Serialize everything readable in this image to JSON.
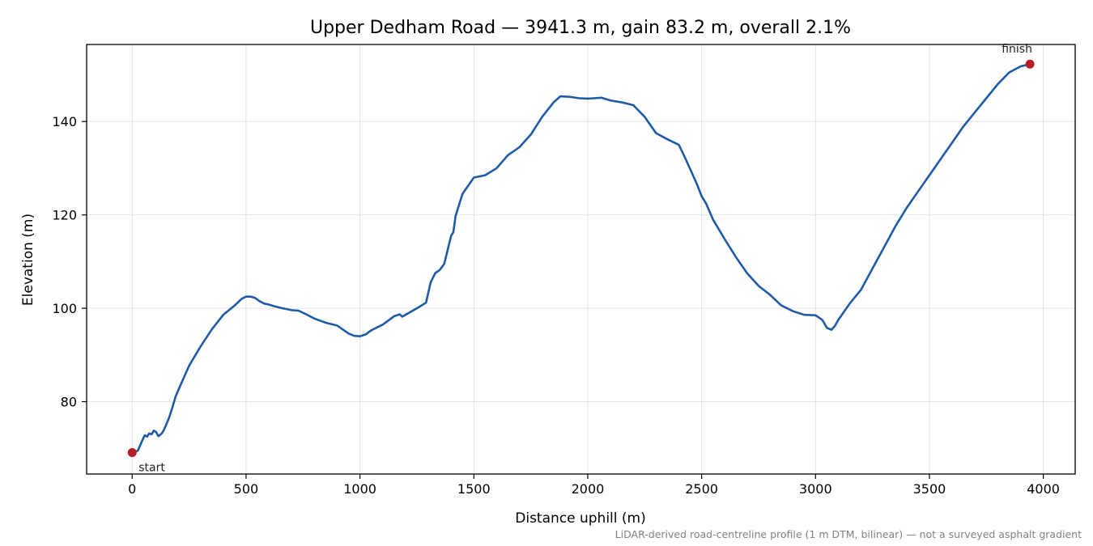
{
  "chart_data": {
    "type": "line",
    "title": "Upper Dedham Road — 3941.3 m, gain 83.2 m, overall 2.1%",
    "xlabel": "Distance uphill (m)",
    "ylabel": "Elevation (m)",
    "xlim": [
      -200,
      4140
    ],
    "ylim": [
      64.5,
      156.5
    ],
    "xticks": [
      0,
      500,
      1000,
      1500,
      2000,
      2500,
      3000,
      3500,
      4000
    ],
    "yticks": [
      80,
      100,
      120,
      140
    ],
    "grid": true,
    "footnote": "LiDAR-derived road-centreline profile (1 m DTM, bilinear) — not a surveyed asphalt gradient",
    "line_color": "#1f5aa6",
    "marker_color": "#b81c23",
    "series": [
      {
        "x": [
          0,
          25,
          40,
          55,
          65,
          75,
          85,
          95,
          105,
          115,
          120,
          130,
          140,
          160,
          175,
          190,
          210,
          250,
          300,
          350,
          400,
          450,
          480,
          500,
          520,
          540,
          560,
          580,
          600,
          620,
          650,
          700,
          730,
          760,
          800,
          850,
          900,
          950,
          975,
          1000,
          1025,
          1050,
          1100,
          1150,
          1175,
          1185,
          1200,
          1250,
          1290,
          1310,
          1330,
          1350,
          1370,
          1400,
          1410,
          1420,
          1450,
          1500,
          1550,
          1600,
          1650,
          1700,
          1750,
          1800,
          1850,
          1880,
          1920,
          1960,
          2000,
          2030,
          2060,
          2100,
          2150,
          2200,
          2250,
          2300,
          2350,
          2400,
          2420,
          2450,
          2480,
          2500,
          2520,
          2550,
          2600,
          2650,
          2700,
          2750,
          2800,
          2850,
          2900,
          2950,
          3000,
          3030,
          3050,
          3070,
          3085,
          3100,
          3150,
          3200,
          3250,
          3300,
          3350,
          3400,
          3450,
          3500,
          3550,
          3600,
          3650,
          3700,
          3750,
          3800,
          3850,
          3900,
          3941.3
        ],
        "y": [
          69.1,
          69.5,
          71.2,
          72.8,
          72.5,
          73.2,
          73.0,
          73.8,
          73.5,
          72.6,
          72.8,
          73.2,
          74.0,
          76.3,
          78.5,
          81.0,
          83.3,
          87.7,
          91.8,
          95.5,
          98.6,
          100.6,
          102.0,
          102.5,
          102.5,
          102.2,
          101.5,
          101.0,
          100.8,
          100.5,
          100.1,
          99.6,
          99.5,
          98.8,
          97.8,
          96.9,
          96.3,
          94.6,
          94.1,
          94.0,
          94.4,
          95.3,
          96.5,
          98.3,
          98.7,
          98.2,
          98.6,
          100.0,
          101.2,
          105.5,
          107.5,
          108.2,
          109.5,
          115.5,
          116.3,
          119.8,
          124.5,
          128.0,
          128.5,
          130.0,
          132.8,
          134.5,
          137.2,
          141.0,
          144.1,
          145.4,
          145.3,
          145.0,
          144.9,
          145.0,
          145.1,
          144.5,
          144.1,
          143.5,
          141.0,
          137.5,
          136.2,
          135.0,
          133.0,
          129.8,
          126.5,
          124.0,
          122.4,
          119.0,
          114.9,
          111.0,
          107.5,
          104.8,
          102.9,
          100.6,
          99.4,
          98.6,
          98.5,
          97.5,
          95.8,
          95.4,
          96.2,
          97.5,
          101.0,
          104.0,
          108.5,
          113.0,
          117.5,
          121.5,
          125.0,
          128.5,
          132.0,
          135.5,
          139.0,
          142.0,
          145.0,
          148.0,
          150.5,
          151.8,
          152.3
        ]
      }
    ],
    "annotations": [
      {
        "label": "start",
        "x": 0,
        "y": 69.1
      },
      {
        "label": "finish",
        "x": 3941.3,
        "y": 152.3
      }
    ]
  }
}
